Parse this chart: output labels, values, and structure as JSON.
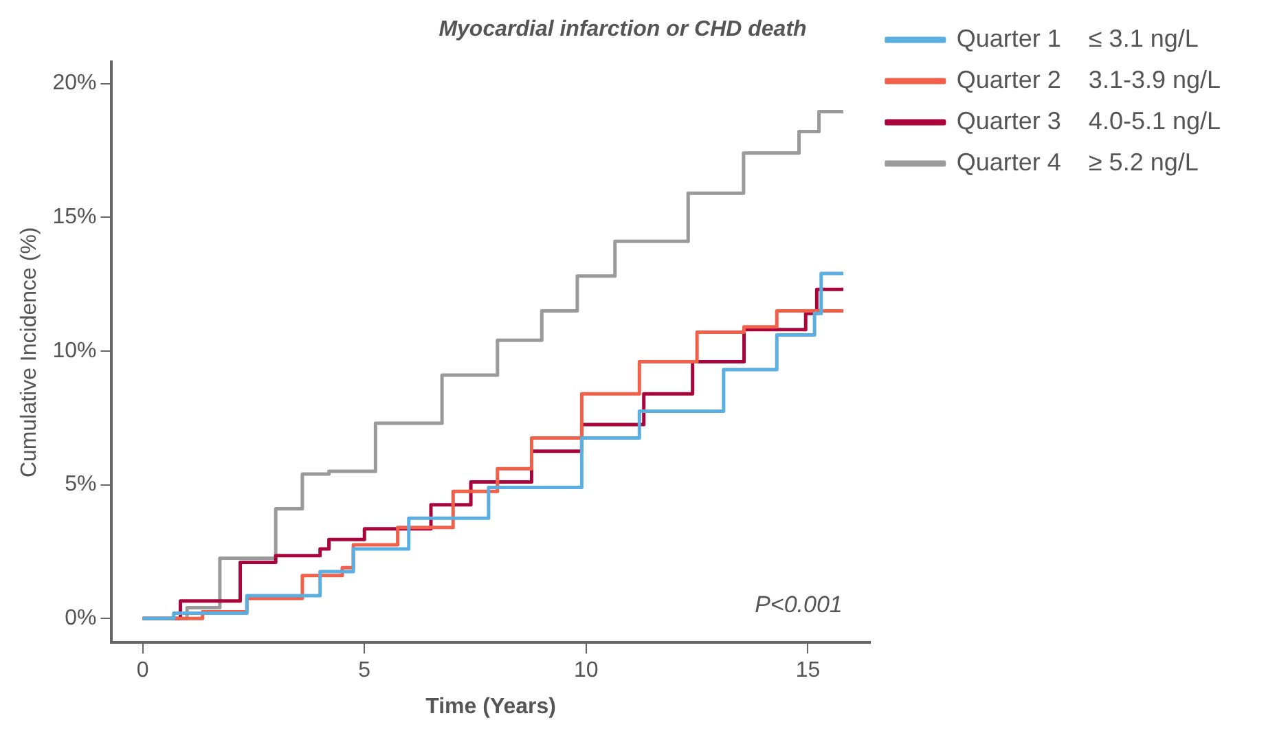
{
  "chart_data": {
    "type": "step",
    "title": "Myocardial infarction or CHD death",
    "xlabel": "Time (Years)",
    "ylabel": "Cumulative Incidence (%)",
    "xlim": [
      -0.7,
      16.4
    ],
    "ylim": [
      -0.9,
      20.8
    ],
    "xticks": [
      0,
      5,
      10,
      15
    ],
    "yticks": [
      {
        "value": 0,
        "label": "0%"
      },
      {
        "value": 5,
        "label": "5%"
      },
      {
        "value": 10,
        "label": "10%"
      },
      {
        "value": 15,
        "label": "15%"
      },
      {
        "value": 20,
        "label": "20%"
      }
    ],
    "grid": false,
    "legend": "right",
    "marker": "none",
    "line_style": "solid",
    "annotations": [
      "P<0.001"
    ],
    "series": [
      {
        "name": "Quarter 1    ≤ 3.1 ng/L",
        "color": "#5aaee0",
        "x": [
          0,
          0.7,
          2.35,
          4.0,
          4.75,
          6.0,
          7.8,
          9.9,
          11.2,
          13.1,
          14.3,
          15.15,
          15.3,
          15.8
        ],
        "values": [
          0,
          0.2,
          0.85,
          1.75,
          2.6,
          3.75,
          4.9,
          6.75,
          7.75,
          9.3,
          10.6,
          11.4,
          12.9,
          12.9
        ]
      },
      {
        "name": "Quarter 2    3.1-3.9 ng/L",
        "color": "#f0604a",
        "x": [
          0,
          1.35,
          2.35,
          3.6,
          4.5,
          4.75,
          5.75,
          7.0,
          8.0,
          8.77,
          9.9,
          11.2,
          12.5,
          13.56,
          14.3,
          15.8
        ],
        "values": [
          0,
          0.25,
          0.75,
          1.6,
          1.9,
          2.75,
          3.4,
          4.75,
          5.6,
          6.75,
          8.4,
          9.6,
          10.7,
          10.9,
          11.5,
          11.5
        ]
      },
      {
        "name": "Quarter 3    4.0-5.1 ng/L",
        "color": "#a8063a",
        "x": [
          0,
          0.85,
          2.2,
          3.0,
          4.0,
          4.2,
          5.0,
          6.5,
          7.4,
          8.77,
          9.9,
          11.3,
          12.4,
          13.56,
          14.95,
          15.2,
          15.8
        ],
        "values": [
          0,
          0.65,
          2.1,
          2.35,
          2.6,
          2.95,
          3.35,
          4.25,
          5.1,
          6.25,
          7.25,
          8.4,
          9.6,
          10.8,
          11.4,
          12.3,
          12.3
        ]
      },
      {
        "name": "Quarter 4    ≥ 5.2 ng/L",
        "color": "#9a9a9a",
        "x": [
          0,
          1.0,
          1.74,
          3.0,
          3.6,
          4.2,
          5.25,
          6.75,
          8.0,
          9.0,
          9.8,
          10.65,
          11.3,
          12.3,
          13.55,
          14.4,
          14.8,
          15.25,
          15.8
        ],
        "values": [
          0,
          0.4,
          2.25,
          4.1,
          5.4,
          5.5,
          7.3,
          9.1,
          10.4,
          11.5,
          12.8,
          14.1,
          14.1,
          15.9,
          17.4,
          17.4,
          18.2,
          18.95,
          18.95
        ]
      }
    ]
  }
}
